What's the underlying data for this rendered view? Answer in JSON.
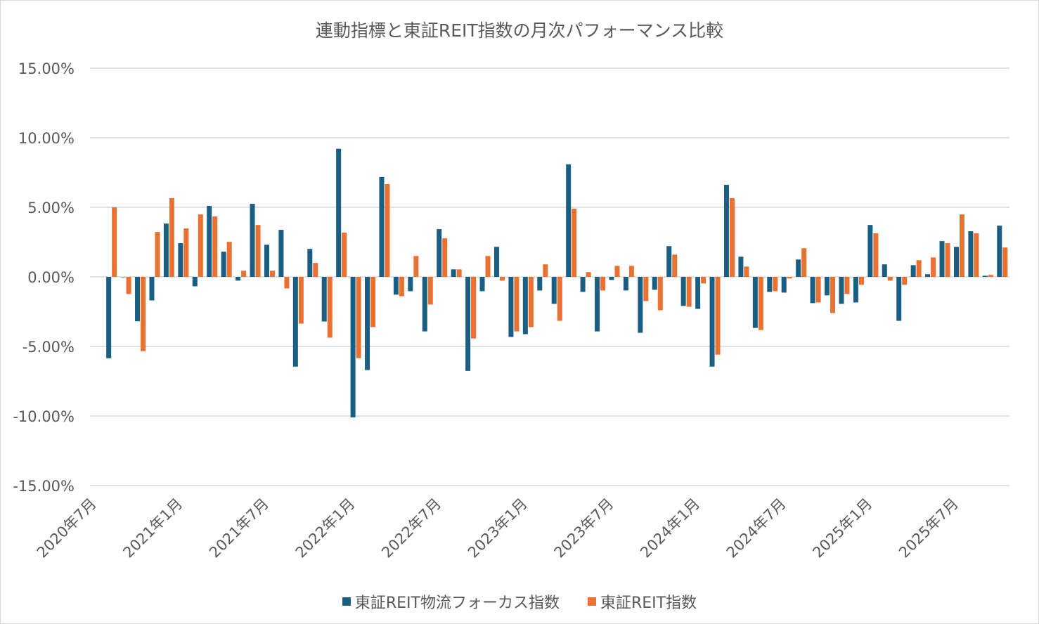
{
  "chart_data": {
    "type": "bar",
    "title": "連動指標と東証REIT指数の月次パフォーマンス比較",
    "xlabel": "",
    "ylabel": "",
    "ylim": [
      -15,
      15
    ],
    "yticks": [
      15,
      10,
      5,
      0,
      -5,
      -10,
      -15
    ],
    "ytick_labels": [
      "15.00%",
      "10.00%",
      "5.00%",
      "0.00%",
      "-5.00%",
      "-10.00%",
      "-15.00%"
    ],
    "xtick_labels": [
      "2020年7月",
      "2021年1月",
      "2021年7月",
      "2022年1月",
      "2022年7月",
      "2023年1月",
      "2023年7月",
      "2024年1月",
      "2024年7月",
      "2025年1月",
      "2025年7月"
    ],
    "xtick_every": 6,
    "start": {
      "year": 2020,
      "month": 7
    },
    "n_categories": 64,
    "grid": true,
    "legend_position": "bottom",
    "series": [
      {
        "name": "東証REIT物流フォーカス指数",
        "color": "#1a5f83",
        "values": [
          null,
          -5.85,
          0,
          -3.19,
          -1.69,
          3.83,
          2.42,
          -0.68,
          5.1,
          1.81,
          -0.27,
          5.25,
          2.31,
          3.38,
          -6.45,
          2.01,
          -3.21,
          9.21,
          -10.1,
          -6.7,
          7.18,
          -1.28,
          -1.03,
          -3.92,
          3.43,
          0.54,
          -6.76,
          -1.03,
          2.16,
          -4.32,
          -4.12,
          -0.98,
          -1.94,
          8.09,
          -1.08,
          -3.92,
          -0.22,
          -0.98,
          -4.02,
          -0.93,
          2.21,
          -2.09,
          -2.3,
          -6.45,
          6.62,
          1.45,
          -3.67,
          -1.08,
          -1.13,
          1.25,
          -1.89,
          -1.33,
          -1.94,
          -1.84,
          3.73,
          0.9,
          -3.16,
          0.84,
          0.19,
          2.57,
          2.16,
          3.28,
          0.08,
          3.68
        ]
      },
      {
        "name": "東証REIT指数",
        "color": "#e97132",
        "values": [
          null,
          5.0,
          -1.23,
          -5.34,
          3.23,
          5.66,
          3.48,
          4.49,
          4.34,
          2.52,
          0.44,
          3.73,
          0.44,
          -0.83,
          -3.36,
          1.0,
          -4.37,
          3.18,
          -5.84,
          -3.61,
          6.67,
          -1.39,
          1.5,
          -1.99,
          2.77,
          0.54,
          -4.43,
          1.5,
          -0.27,
          -3.92,
          -3.61,
          0.9,
          -3.16,
          4.9,
          0.34,
          -0.98,
          0.79,
          0.79,
          -1.74,
          -2.4,
          1.6,
          -2.15,
          -0.47,
          -5.59,
          5.66,
          0.74,
          -3.82,
          -1.03,
          -0.12,
          2.06,
          -1.84,
          -2.6,
          -1.23,
          -0.57,
          3.13,
          -0.27,
          -0.57,
          1.2,
          1.4,
          2.42,
          4.49,
          3.13,
          0.14,
          2.11
        ]
      }
    ]
  }
}
